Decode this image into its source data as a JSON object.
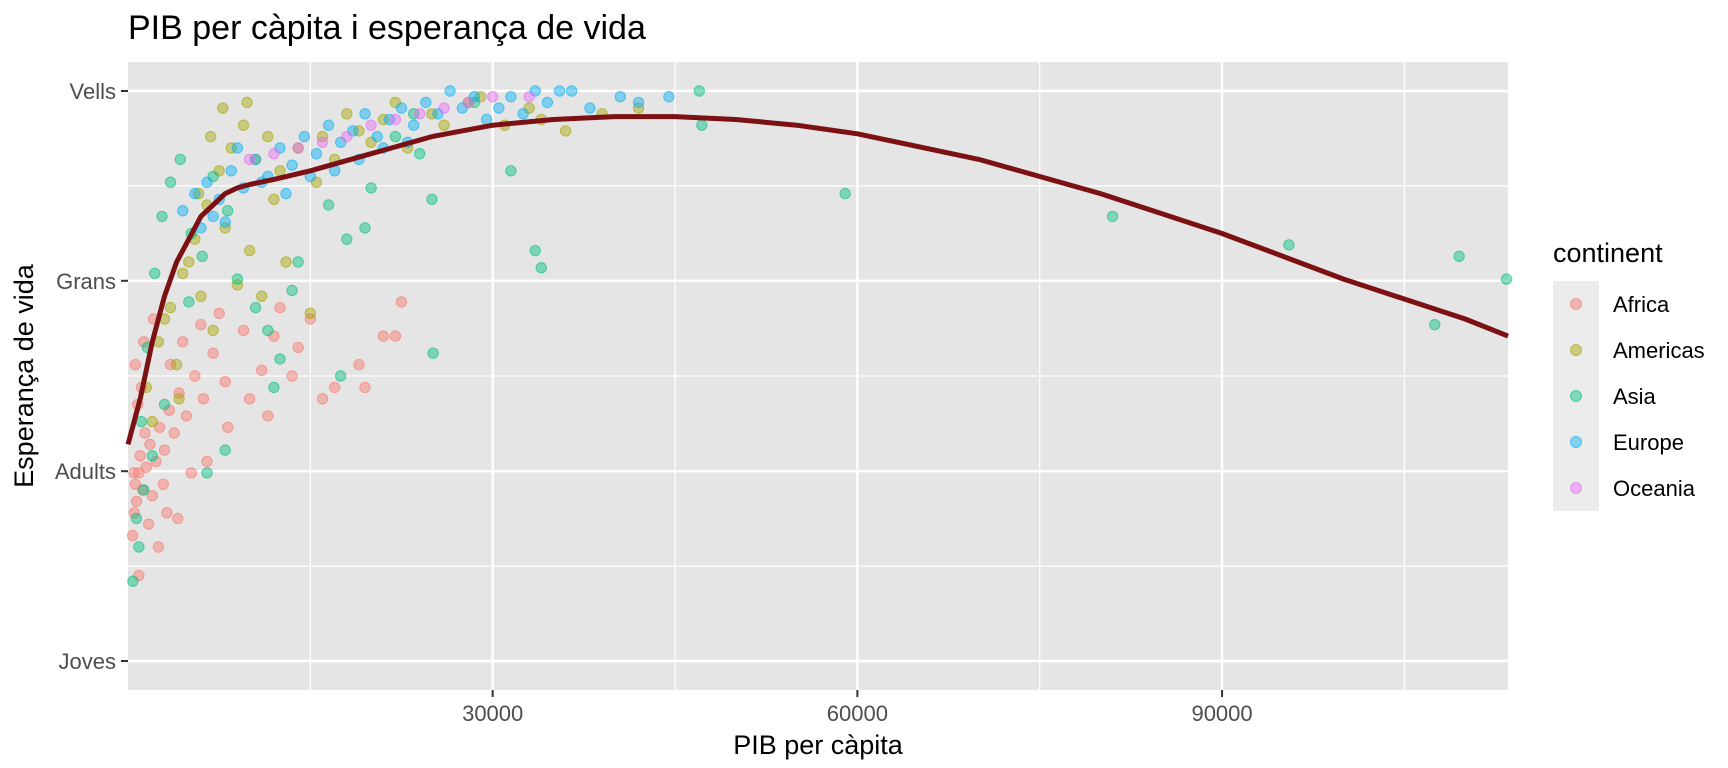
{
  "chart_data": {
    "type": "scatter",
    "title": "PIB per càpita i esperança de vida",
    "xlabel": "PIB per càpita",
    "ylabel": "Esperança de vida",
    "xlim": [
      0,
      113523
    ],
    "ylim": [
      0,
      1
    ],
    "x_ticks": [
      30000,
      60000,
      90000
    ],
    "x_tick_labels": [
      "30000",
      "60000",
      "90000"
    ],
    "y_ticks": [
      0,
      0.333,
      0.667,
      1
    ],
    "y_tick_labels": [
      "Joves",
      "Adults",
      "Grans",
      "Vells"
    ],
    "grid": true,
    "legend": {
      "title": "continent",
      "position": "right",
      "entries": [
        "Africa",
        "Americas",
        "Asia",
        "Europe",
        "Oceania"
      ]
    },
    "colors": {
      "Africa": "#F8766D",
      "Americas": "#A3A500",
      "Asia": "#00BF7D",
      "Europe": "#00B0F6",
      "Oceania": "#E76BF3",
      "trend": "#7B1113",
      "panel": "#E5E5E5"
    },
    "series": [
      {
        "name": "Africa",
        "points": [
          [
            380,
            0.22
          ],
          [
            520,
            0.26
          ],
          [
            600,
            0.31
          ],
          [
            700,
            0.28
          ],
          [
            900,
            0.33
          ],
          [
            1000,
            0.36
          ],
          [
            1200,
            0.3
          ],
          [
            1500,
            0.34
          ],
          [
            1800,
            0.38
          ],
          [
            2000,
            0.29
          ],
          [
            2300,
            0.35
          ],
          [
            2600,
            0.41
          ],
          [
            3000,
            0.37
          ],
          [
            3400,
            0.44
          ],
          [
            3800,
            0.4
          ],
          [
            4200,
            0.47
          ],
          [
            4800,
            0.43
          ],
          [
            5500,
            0.5
          ],
          [
            6200,
            0.46
          ],
          [
            7000,
            0.54
          ],
          [
            8000,
            0.49
          ],
          [
            9500,
            0.58
          ],
          [
            11000,
            0.51
          ],
          [
            12500,
            0.62
          ],
          [
            14000,
            0.55
          ],
          [
            15000,
            0.6
          ],
          [
            17000,
            0.48
          ],
          [
            19000,
            0.52
          ],
          [
            21000,
            0.57
          ],
          [
            22000,
            0.57
          ],
          [
            22500,
            0.63
          ],
          [
            2500,
            0.2
          ],
          [
            3200,
            0.26
          ],
          [
            1400,
            0.4
          ],
          [
            500,
            0.33
          ],
          [
            800,
            0.45
          ],
          [
            1100,
            0.48
          ],
          [
            3500,
            0.52
          ],
          [
            4500,
            0.56
          ],
          [
            6000,
            0.59
          ],
          [
            7500,
            0.61
          ],
          [
            900,
            0.15
          ],
          [
            1700,
            0.24
          ],
          [
            2900,
            0.31
          ],
          [
            5200,
            0.33
          ],
          [
            4100,
            0.25
          ],
          [
            8200,
            0.41
          ],
          [
            10000,
            0.46
          ],
          [
            12000,
            0.57
          ],
          [
            13500,
            0.5
          ],
          [
            16000,
            0.46
          ],
          [
            6500,
            0.35
          ],
          [
            11500,
            0.43
          ],
          [
            600,
            0.52
          ],
          [
            1300,
            0.56
          ],
          [
            2100,
            0.6
          ],
          [
            19500,
            0.48
          ]
        ]
      },
      {
        "name": "Americas",
        "points": [
          [
            1500,
            0.48
          ],
          [
            2500,
            0.56
          ],
          [
            3500,
            0.62
          ],
          [
            4500,
            0.68
          ],
          [
            5500,
            0.74
          ],
          [
            6500,
            0.8
          ],
          [
            7500,
            0.86
          ],
          [
            8500,
            0.9
          ],
          [
            9500,
            0.94
          ],
          [
            10500,
            0.88
          ],
          [
            11500,
            0.92
          ],
          [
            12500,
            0.86
          ],
          [
            14000,
            0.9
          ],
          [
            15500,
            0.84
          ],
          [
            17000,
            0.88
          ],
          [
            19000,
            0.93
          ],
          [
            21000,
            0.95
          ],
          [
            23000,
            0.9
          ],
          [
            25000,
            0.96
          ],
          [
            28000,
            0.98
          ],
          [
            31000,
            0.94
          ],
          [
            33000,
            0.97
          ],
          [
            36000,
            0.93
          ],
          [
            39000,
            0.96
          ],
          [
            42000,
            0.97
          ],
          [
            3000,
            0.6
          ],
          [
            4000,
            0.52
          ],
          [
            5000,
            0.7
          ],
          [
            6000,
            0.64
          ],
          [
            8000,
            0.76
          ],
          [
            10000,
            0.72
          ],
          [
            12000,
            0.81
          ],
          [
            13000,
            0.7
          ],
          [
            9000,
            0.66
          ],
          [
            7000,
            0.58
          ],
          [
            2000,
            0.42
          ],
          [
            4200,
            0.46
          ],
          [
            5800,
            0.82
          ],
          [
            6800,
            0.92
          ],
          [
            7800,
            0.97
          ],
          [
            9800,
            0.98
          ],
          [
            16000,
            0.92
          ],
          [
            18000,
            0.96
          ],
          [
            20000,
            0.91
          ],
          [
            22000,
            0.98
          ],
          [
            26000,
            0.94
          ],
          [
            29000,
            0.99
          ],
          [
            34000,
            0.95
          ],
          [
            15000,
            0.61
          ],
          [
            11000,
            0.64
          ]
        ]
      },
      {
        "name": "Asia",
        "points": [
          [
            400,
            0.14
          ],
          [
            700,
            0.25
          ],
          [
            1100,
            0.42
          ],
          [
            1600,
            0.55
          ],
          [
            2200,
            0.68
          ],
          [
            2800,
            0.78
          ],
          [
            3500,
            0.84
          ],
          [
            4300,
            0.88
          ],
          [
            5200,
            0.75
          ],
          [
            6100,
            0.71
          ],
          [
            7000,
            0.85
          ],
          [
            8200,
            0.79
          ],
          [
            9000,
            0.67
          ],
          [
            10500,
            0.62
          ],
          [
            11500,
            0.58
          ],
          [
            12500,
            0.53
          ],
          [
            14000,
            0.7
          ],
          [
            16500,
            0.8
          ],
          [
            18000,
            0.74
          ],
          [
            20000,
            0.83
          ],
          [
            22000,
            0.92
          ],
          [
            24000,
            0.89
          ],
          [
            25000,
            0.81
          ],
          [
            25100,
            0.54
          ],
          [
            28500,
            0.98
          ],
          [
            31500,
            0.86
          ],
          [
            33500,
            0.72
          ],
          [
            34000,
            0.69
          ],
          [
            47000,
            1.0
          ],
          [
            47200,
            0.94
          ],
          [
            59000,
            0.82
          ],
          [
            81000,
            0.78
          ],
          [
            95500,
            0.73
          ],
          [
            107500,
            0.59
          ],
          [
            109500,
            0.71
          ],
          [
            113400,
            0.67
          ],
          [
            17500,
            0.5
          ],
          [
            12000,
            0.48
          ],
          [
            8000,
            0.37
          ],
          [
            6500,
            0.33
          ],
          [
            3000,
            0.45
          ],
          [
            2000,
            0.36
          ],
          [
            1300,
            0.3
          ],
          [
            900,
            0.2
          ],
          [
            5000,
            0.63
          ],
          [
            13500,
            0.65
          ],
          [
            19500,
            0.76
          ],
          [
            23500,
            0.96
          ]
        ]
      },
      {
        "name": "Europe",
        "points": [
          [
            4500,
            0.79
          ],
          [
            5500,
            0.82
          ],
          [
            6500,
            0.84
          ],
          [
            7500,
            0.81
          ],
          [
            8500,
            0.86
          ],
          [
            9500,
            0.83
          ],
          [
            10500,
            0.88
          ],
          [
            11500,
            0.85
          ],
          [
            12500,
            0.9
          ],
          [
            13500,
            0.87
          ],
          [
            14500,
            0.92
          ],
          [
            15500,
            0.89
          ],
          [
            16500,
            0.94
          ],
          [
            17500,
            0.91
          ],
          [
            18500,
            0.93
          ],
          [
            19500,
            0.96
          ],
          [
            20500,
            0.92
          ],
          [
            21500,
            0.95
          ],
          [
            22500,
            0.97
          ],
          [
            23500,
            0.94
          ],
          [
            24500,
            0.98
          ],
          [
            25500,
            0.96
          ],
          [
            26500,
            1.0
          ],
          [
            27500,
            0.97
          ],
          [
            28500,
            0.99
          ],
          [
            29500,
            0.95
          ],
          [
            30500,
            0.97
          ],
          [
            31500,
            0.99
          ],
          [
            32500,
            0.96
          ],
          [
            33500,
            1.0
          ],
          [
            34500,
            0.98
          ],
          [
            35500,
            1.0
          ],
          [
            36500,
            1.0
          ],
          [
            38000,
            0.97
          ],
          [
            40500,
            0.99
          ],
          [
            42000,
            0.98
          ],
          [
            44500,
            0.99
          ],
          [
            9000,
            0.9
          ],
          [
            11000,
            0.84
          ],
          [
            13000,
            0.82
          ],
          [
            15000,
            0.85
          ],
          [
            17000,
            0.86
          ],
          [
            19000,
            0.88
          ],
          [
            21000,
            0.9
          ],
          [
            23000,
            0.91
          ],
          [
            6000,
            0.76
          ],
          [
            7000,
            0.78
          ],
          [
            8000,
            0.77
          ]
        ]
      },
      {
        "name": "Oceania",
        "points": [
          [
            10000,
            0.88
          ],
          [
            12000,
            0.89
          ],
          [
            14000,
            0.9
          ],
          [
            16000,
            0.91
          ],
          [
            18000,
            0.92
          ],
          [
            20000,
            0.94
          ],
          [
            22000,
            0.95
          ],
          [
            24000,
            0.96
          ],
          [
            26000,
            0.97
          ],
          [
            28000,
            0.98
          ],
          [
            30000,
            0.99
          ],
          [
            33000,
            0.99
          ]
        ]
      }
    ],
    "trend": {
      "name": "",
      "x": [
        0,
        1000,
        2000,
        3000,
        4000,
        5000,
        6000,
        7000,
        8000,
        9000,
        10000,
        12000,
        15000,
        20000,
        25000,
        30000,
        35000,
        40000,
        45000,
        50000,
        55000,
        60000,
        70000,
        80000,
        90000,
        100000,
        110000,
        113523
      ],
      "y": [
        0.38,
        0.46,
        0.56,
        0.64,
        0.7,
        0.74,
        0.78,
        0.8,
        0.82,
        0.83,
        0.836,
        0.845,
        0.86,
        0.89,
        0.92,
        0.94,
        0.95,
        0.955,
        0.955,
        0.95,
        0.94,
        0.925,
        0.88,
        0.82,
        0.75,
        0.67,
        0.6,
        0.57
      ]
    }
  }
}
